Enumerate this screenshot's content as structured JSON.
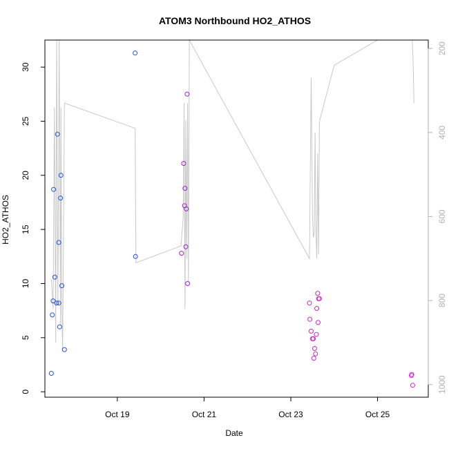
{
  "chart_data": {
    "type": "scatter",
    "title": "ATOM3 Northbound HO2_ATHOS",
    "xlabel": "Date",
    "ylabel": "HO2_ATHOS",
    "xlim": [
      17.33,
      26.17
    ],
    "ylim": [
      -0.5,
      32.5
    ],
    "x_ticks": [
      {
        "value": 19,
        "label": "Oct 19"
      },
      {
        "value": 21,
        "label": "Oct 21"
      },
      {
        "value": 23,
        "label": "Oct 23"
      },
      {
        "value": 25,
        "label": "Oct 25"
      }
    ],
    "y_ticks": [
      0,
      5,
      10,
      15,
      20,
      25,
      30
    ],
    "secondary_axis": {
      "label": "",
      "inverted": true,
      "lim": [
        1030,
        180
      ],
      "ticks": [
        200,
        400,
        600,
        800,
        1000
      ],
      "color": "#b0b0b0"
    },
    "grid": false,
    "colors": {
      "line": "#c8c8c8",
      "blue": "#1f4fe0",
      "purple": "#9b1fe0",
      "magenta": "#d21fd0"
    },
    "series": [
      {
        "kind": "points",
        "color": "blue",
        "x": [
          17.48,
          17.5,
          17.52,
          17.53,
          17.56,
          17.6,
          17.62,
          17.65,
          17.65,
          17.67,
          17.69,
          17.7,
          17.72,
          17.78,
          19.41,
          19.42
        ],
        "y": [
          1.7,
          7.1,
          8.4,
          18.7,
          10.6,
          8.2,
          23.8,
          8.2,
          13.8,
          6.0,
          17.9,
          20.0,
          9.8,
          3.9,
          31.3,
          12.5
        ]
      },
      {
        "kind": "points",
        "color": "purple",
        "x": [
          20.48,
          20.53,
          20.55,
          20.56,
          20.58,
          20.59,
          20.61,
          20.62
        ],
        "y": [
          12.8,
          21.1,
          17.2,
          18.8,
          13.4,
          16.9,
          27.5,
          10.0
        ]
      },
      {
        "kind": "points",
        "color": "magenta",
        "x": [
          23.43,
          23.44,
          23.47,
          23.5,
          23.52,
          23.53,
          23.55,
          23.57,
          23.59,
          23.6,
          23.62,
          23.63,
          23.64,
          23.66,
          25.78,
          25.79,
          25.81
        ],
        "y": [
          8.2,
          6.7,
          5.6,
          4.9,
          4.9,
          3.1,
          4.0,
          3.5,
          5.3,
          7.7,
          9.1,
          6.4,
          8.6,
          8.6,
          1.5,
          1.6,
          0.6
        ]
      },
      {
        "kind": "line",
        "axis": "secondary",
        "color": "line",
        "x": [
          17.48,
          17.52,
          17.55,
          17.58,
          17.6,
          17.63,
          17.66,
          17.69,
          17.7,
          17.72,
          17.74,
          17.78,
          19.41,
          19.43,
          20.47,
          20.52,
          20.54,
          20.56,
          20.58,
          20.6,
          20.62,
          20.64,
          20.66,
          23.43,
          23.47,
          23.5,
          23.52,
          23.54,
          23.56,
          23.58,
          23.6,
          23.62,
          23.64,
          23.66,
          23.67,
          24.0,
          25.0,
          25.8,
          25.82,
          25.84
        ],
        "y": [
          750,
          820,
          340,
          900,
          180,
          810,
          180,
          860,
          340,
          820,
          920,
          330,
          390,
          710,
          670,
          600,
          330,
          820,
          370,
          700,
          330,
          760,
          180,
          700,
          270,
          600,
          650,
          640,
          400,
          640,
          700,
          450,
          690,
          380,
          370,
          240,
          180,
          180,
          230,
          330
        ]
      }
    ]
  }
}
